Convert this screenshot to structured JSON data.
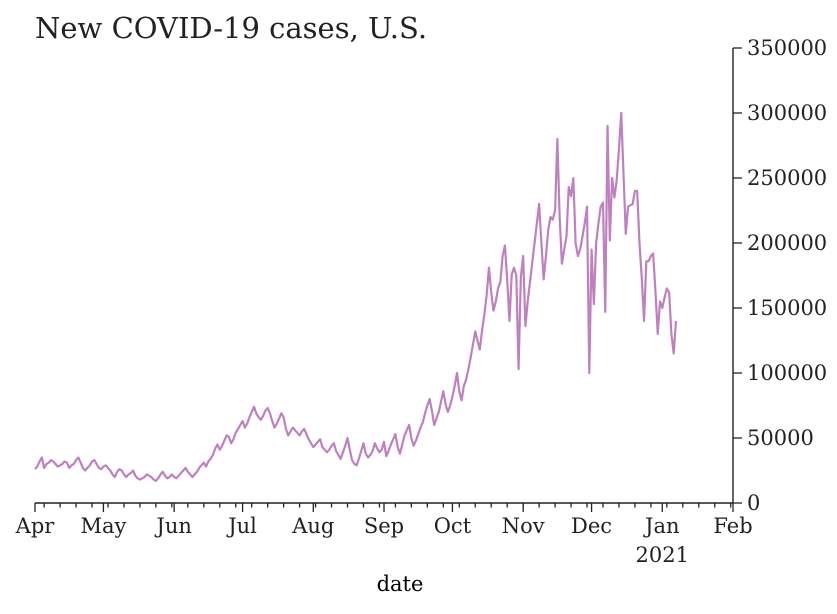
{
  "chart_data": {
    "type": "line",
    "title": "New COVID-19 cases, U.S.",
    "xlabel": "date",
    "ylabel": "",
    "x_tick_labels": [
      "Apr",
      "May",
      "Jun",
      "Jul",
      "Aug",
      "Sep",
      "Oct",
      "Nov",
      "Dec",
      "Jan",
      "Feb"
    ],
    "x_tick_year_label": "2021",
    "y_ticks": [
      0,
      50000,
      100000,
      150000,
      200000,
      250000,
      300000,
      350000
    ],
    "ylim": [
      0,
      350000
    ],
    "xlim": [
      "2020-04-01",
      "2021-02-01"
    ],
    "y_axis_side": "right",
    "grid": false,
    "line_color": "#bf80bf",
    "series": [
      {
        "start_date": "2020-04-01",
        "frequency": "daily",
        "values": [
          26000,
          28000,
          32000,
          35000,
          27000,
          30000,
          31000,
          33000,
          32000,
          30000,
          28000,
          29000,
          30000,
          32000,
          31000,
          27000,
          29000,
          30000,
          33000,
          35000,
          31000,
          27000,
          25000,
          27000,
          29000,
          32000,
          33000,
          30000,
          27000,
          26000,
          28000,
          29000,
          27000,
          25000,
          22000,
          20000,
          24000,
          26000,
          25000,
          22000,
          20000,
          22000,
          23000,
          25000,
          21000,
          19000,
          18000,
          19000,
          20000,
          22000,
          21000,
          20000,
          18000,
          17000,
          19000,
          22000,
          24000,
          21000,
          19000,
          20000,
          22000,
          20000,
          19000,
          21000,
          23000,
          25000,
          27000,
          24000,
          22000,
          20000,
          22000,
          24000,
          27000,
          29000,
          31000,
          28000,
          32000,
          34000,
          37000,
          42000,
          45000,
          41000,
          44000,
          48000,
          52000,
          51000,
          46000,
          49000,
          54000,
          57000,
          60000,
          63000,
          58000,
          61000,
          66000,
          70000,
          74000,
          69000,
          66000,
          64000,
          67000,
          71000,
          73000,
          69000,
          63000,
          58000,
          61000,
          65000,
          69000,
          66000,
          57000,
          52000,
          55000,
          58000,
          56000,
          54000,
          52000,
          55000,
          57000,
          53000,
          49000,
          46000,
          43000,
          45000,
          47000,
          49000,
          43000,
          41000,
          39000,
          41000,
          44000,
          46000,
          40000,
          37000,
          34000,
          39000,
          44000,
          50000,
          41000,
          33000,
          30000,
          29000,
          34000,
          40000,
          46000,
          38000,
          35000,
          37000,
          40000,
          46000,
          42000,
          39000,
          41000,
          47000,
          36000,
          40000,
          45000,
          49000,
          53000,
          43000,
          38000,
          45000,
          52000,
          56000,
          60000,
          50000,
          44000,
          48000,
          53000,
          58000,
          62000,
          69000,
          75000,
          80000,
          71000,
          60000,
          65000,
          70000,
          78000,
          86000,
          76000,
          70000,
          75000,
          82000,
          90000,
          100000,
          86000,
          79000,
          90000,
          95000,
          103000,
          112000,
          122000,
          132000,
          125000,
          118000,
          133000,
          145000,
          160000,
          181000,
          162000,
          148000,
          155000,
          165000,
          170000,
          190000,
          198000,
          172000,
          140000,
          176000,
          181000,
          175000,
          103000,
          174000,
          190000,
          136000,
          155000,
          170000,
          185000,
          200000,
          215000,
          230000,
          200000,
          172000,
          190000,
          210000,
          220000,
          218000,
          225000,
          280000,
          220000,
          184000,
          195000,
          205000,
          243000,
          236000,
          250000,
          200000,
          190000,
          195000,
          205000,
          215000,
          228000,
          100000,
          195000,
          153000,
          200000,
          215000,
          228000,
          231000,
          147000,
          290000,
          202000,
          250000,
          235000,
          248000,
          272000,
          300000,
          253000,
          207000,
          228000,
          229000,
          230000,
          240000,
          240000,
          200000,
          173000,
          140000,
          186000,
          186000,
          190000,
          192000,
          163000,
          130000,
          155000,
          150000,
          158000,
          165000,
          162000,
          130000,
          115000,
          140000
        ]
      }
    ]
  }
}
